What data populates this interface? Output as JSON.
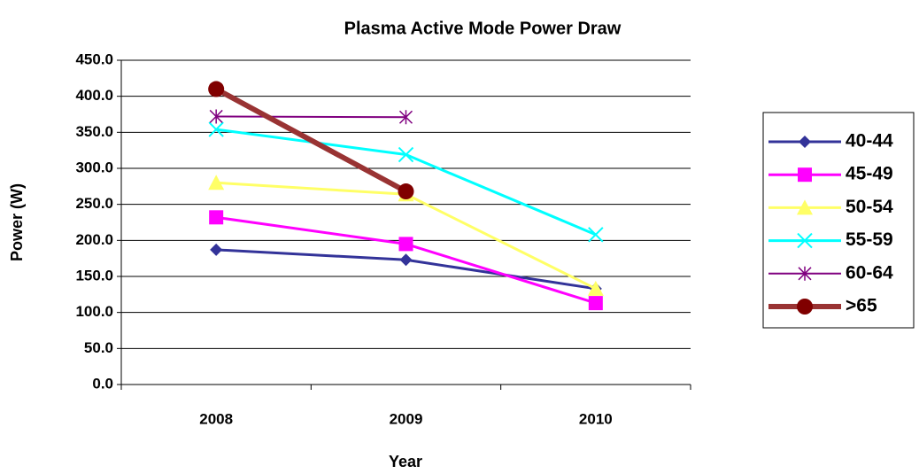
{
  "chart_data": {
    "type": "line",
    "title": "Plasma Active Mode Power Draw",
    "x_label": "Year",
    "y_label": "Power (W)",
    "categories": [
      "2008",
      "2009",
      "2010"
    ],
    "series": [
      {
        "name": "40-44",
        "color": "#333399",
        "marker": "diamond",
        "values": [
          187,
          173,
          133
        ]
      },
      {
        "name": "45-49",
        "color": "#ff00ff",
        "marker": "square",
        "values": [
          232,
          195,
          113
        ]
      },
      {
        "name": "50-54",
        "color": "#ffff66",
        "marker": "triangle",
        "values": [
          280,
          264,
          133
        ]
      },
      {
        "name": "55-59",
        "color": "#00ffff",
        "marker": "x",
        "values": [
          354,
          319,
          208
        ]
      },
      {
        "name": "60-64",
        "color": "#800080",
        "marker": "asterisk",
        "values": [
          372,
          371,
          null
        ]
      },
      {
        "name": ">65",
        "color": "#993333",
        "marker": "circle",
        "values": [
          410,
          268,
          null
        ]
      }
    ],
    "ylim": [
      0,
      450
    ],
    "yticks": [
      {
        "value": 0,
        "label": "0.0"
      },
      {
        "value": 50,
        "label": "50.0"
      },
      {
        "value": 100,
        "label": "100.0"
      },
      {
        "value": 150,
        "label": "150.0"
      },
      {
        "value": 200,
        "label": "200.0"
      },
      {
        "value": 250,
        "label": "250.0"
      },
      {
        "value": 300,
        "label": "300.0"
      },
      {
        "value": 350,
        "label": "350.0"
      },
      {
        "value": 400,
        "label": "400.0"
      },
      {
        "value": 450,
        "label": "450.0"
      }
    ],
    "grid": true,
    "legend": "right"
  }
}
